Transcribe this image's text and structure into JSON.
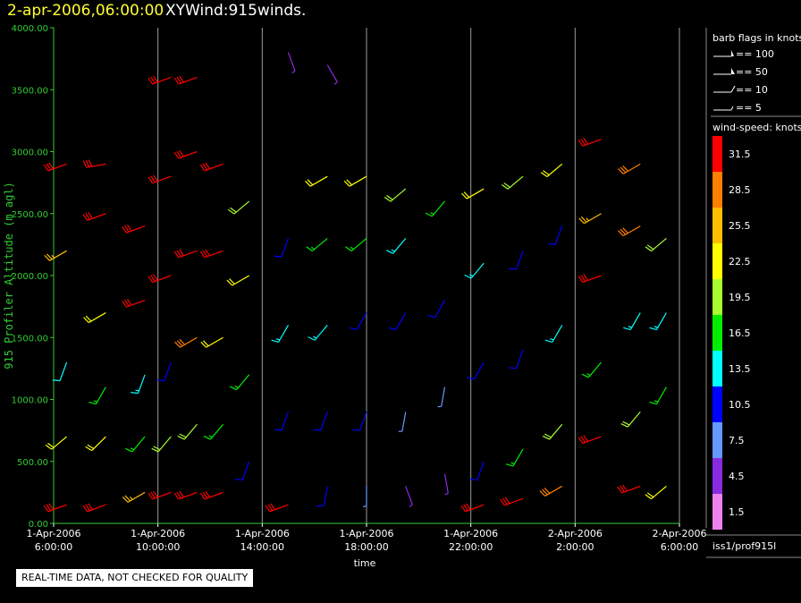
{
  "header": {
    "date": "2-apr-2006,06:00:00",
    "title": "XYWind:915winds."
  },
  "notice": "REAL-TIME DATA, NOT CHECKED FOR QUALITY",
  "legend": {
    "barb_title": "barb flags in knots",
    "barbs": [
      "== 100",
      "== 50",
      "== 10",
      "== 5"
    ],
    "speed_title": "wind-speed: knots",
    "speed_levels": [
      "31.5",
      "28.5",
      "25.5",
      "22.5",
      "19.5",
      "16.5",
      "13.5",
      "10.5",
      "7.5",
      "4.5",
      "1.5"
    ],
    "speed_colors": [
      "#ff0000",
      "#ff7f00",
      "#ffbf00",
      "#ffff00",
      "#a8ff30",
      "#00ee00",
      "#00ffff",
      "#0000ff",
      "#6699ff",
      "#8a2be2",
      "#ee82ee"
    ],
    "source": "iss1/prof915l"
  },
  "chart_data": {
    "type": "scatter",
    "title": "",
    "xlabel": "time",
    "ylabel": "915 Profiler Altitude (m agl)",
    "ylim": [
      0,
      4000
    ],
    "yticks": [
      "0.00",
      "500.00",
      "1000.00",
      "1500.00",
      "2000.00",
      "2500.00",
      "3000.00",
      "3500.00",
      "4000.00"
    ],
    "xlim": [
      "1-Apr-2006 6:00:00",
      "2-Apr-2006 6:00:00"
    ],
    "xticks": [
      {
        "date": "1-Apr-2006",
        "time": "6:00:00"
      },
      {
        "date": "1-Apr-2006",
        "time": "10:00:00"
      },
      {
        "date": "1-Apr-2006",
        "time": "14:00:00"
      },
      {
        "date": "1-Apr-2006",
        "time": "18:00:00"
      },
      {
        "date": "1-Apr-2006",
        "time": "22:00:00"
      },
      {
        "date": "2-Apr-2006",
        "time": "2:00:00"
      },
      {
        "date": "2-Apr-2006",
        "time": "6:00:00"
      }
    ],
    "grid": "vertical",
    "axis_color": "#33cc33",
    "barbs": [
      {
        "time": "1-Apr-2006 06:30",
        "altitude": 150,
        "speed_kt": 30,
        "direction_deg": 250
      },
      {
        "time": "1-Apr-2006 06:30",
        "altitude": 700,
        "speed_kt": 22,
        "direction_deg": 230
      },
      {
        "time": "1-Apr-2006 06:30",
        "altitude": 1300,
        "speed_kt": 12,
        "direction_deg": 200
      },
      {
        "time": "1-Apr-2006 06:30",
        "altitude": 2200,
        "speed_kt": 25,
        "direction_deg": 240
      },
      {
        "time": "1-Apr-2006 06:30",
        "altitude": 2900,
        "speed_kt": 31,
        "direction_deg": 250
      },
      {
        "time": "1-Apr-2006 08:00",
        "altitude": 150,
        "speed_kt": 31,
        "direction_deg": 250
      },
      {
        "time": "1-Apr-2006 08:00",
        "altitude": 700,
        "speed_kt": 22,
        "direction_deg": 225
      },
      {
        "time": "1-Apr-2006 08:00",
        "altitude": 1100,
        "speed_kt": 16,
        "direction_deg": 210
      },
      {
        "time": "1-Apr-2006 08:00",
        "altitude": 1700,
        "speed_kt": 22,
        "direction_deg": 240
      },
      {
        "time": "1-Apr-2006 08:00",
        "altitude": 2500,
        "speed_kt": 31,
        "direction_deg": 250
      },
      {
        "time": "1-Apr-2006 08:00",
        "altitude": 2900,
        "speed_kt": 31,
        "direction_deg": 260
      },
      {
        "time": "1-Apr-2006 09:30",
        "altitude": 250,
        "speed_kt": 25,
        "direction_deg": 240
      },
      {
        "time": "1-Apr-2006 09:30",
        "altitude": 700,
        "speed_kt": 16,
        "direction_deg": 220
      },
      {
        "time": "1-Apr-2006 09:30",
        "altitude": 1200,
        "speed_kt": 13,
        "direction_deg": 200
      },
      {
        "time": "1-Apr-2006 09:30",
        "altitude": 1800,
        "speed_kt": 31,
        "direction_deg": 250
      },
      {
        "time": "1-Apr-2006 09:30",
        "altitude": 2400,
        "speed_kt": 31,
        "direction_deg": 250
      },
      {
        "time": "1-Apr-2006 10:30",
        "altitude": 250,
        "speed_kt": 31,
        "direction_deg": 250
      },
      {
        "time": "1-Apr-2006 10:30",
        "altitude": 700,
        "speed_kt": 19,
        "direction_deg": 220
      },
      {
        "time": "1-Apr-2006 10:30",
        "altitude": 1300,
        "speed_kt": 10,
        "direction_deg": 200
      },
      {
        "time": "1-Apr-2006 10:30",
        "altitude": 2000,
        "speed_kt": 31,
        "direction_deg": 250
      },
      {
        "time": "1-Apr-2006 10:30",
        "altitude": 2800,
        "speed_kt": 31,
        "direction_deg": 250
      },
      {
        "time": "1-Apr-2006 10:30",
        "altitude": 3600,
        "speed_kt": 31,
        "direction_deg": 250
      },
      {
        "time": "1-Apr-2006 11:30",
        "altitude": 250,
        "speed_kt": 31,
        "direction_deg": 250
      },
      {
        "time": "1-Apr-2006 11:30",
        "altitude": 800,
        "speed_kt": 19,
        "direction_deg": 220
      },
      {
        "time": "1-Apr-2006 11:30",
        "altitude": 1500,
        "speed_kt": 28,
        "direction_deg": 240
      },
      {
        "time": "1-Apr-2006 11:30",
        "altitude": 2200,
        "speed_kt": 31,
        "direction_deg": 250
      },
      {
        "time": "1-Apr-2006 11:30",
        "altitude": 3000,
        "speed_kt": 31,
        "direction_deg": 250
      },
      {
        "time": "1-Apr-2006 11:30",
        "altitude": 3600,
        "speed_kt": 31,
        "direction_deg": 250
      },
      {
        "time": "1-Apr-2006 12:30",
        "altitude": 250,
        "speed_kt": 31,
        "direction_deg": 250
      },
      {
        "time": "1-Apr-2006 12:30",
        "altitude": 800,
        "speed_kt": 16,
        "direction_deg": 220
      },
      {
        "time": "1-Apr-2006 12:30",
        "altitude": 1500,
        "speed_kt": 22,
        "direction_deg": 240
      },
      {
        "time": "1-Apr-2006 12:30",
        "altitude": 2200,
        "speed_kt": 31,
        "direction_deg": 250
      },
      {
        "time": "1-Apr-2006 12:30",
        "altitude": 2900,
        "speed_kt": 31,
        "direction_deg": 250
      },
      {
        "time": "1-Apr-2006 13:30",
        "altitude": 500,
        "speed_kt": 10,
        "direction_deg": 200
      },
      {
        "time": "1-Apr-2006 13:30",
        "altitude": 1200,
        "speed_kt": 16,
        "direction_deg": 220
      },
      {
        "time": "1-Apr-2006 13:30",
        "altitude": 2000,
        "speed_kt": 22,
        "direction_deg": 240
      },
      {
        "time": "1-Apr-2006 13:30",
        "altitude": 2600,
        "speed_kt": 19,
        "direction_deg": 230
      },
      {
        "time": "1-Apr-2006 15:00",
        "altitude": 150,
        "speed_kt": 31,
        "direction_deg": 250
      },
      {
        "time": "1-Apr-2006 15:00",
        "altitude": 900,
        "speed_kt": 10,
        "direction_deg": 200
      },
      {
        "time": "1-Apr-2006 15:00",
        "altitude": 1600,
        "speed_kt": 13,
        "direction_deg": 210
      },
      {
        "time": "1-Apr-2006 15:00",
        "altitude": 2300,
        "speed_kt": 10,
        "direction_deg": 200
      },
      {
        "time": "1-Apr-2006 15:00",
        "altitude": 3800,
        "speed_kt": 4,
        "direction_deg": 160
      },
      {
        "time": "1-Apr-2006 16:30",
        "altitude": 300,
        "speed_kt": 10,
        "direction_deg": 190
      },
      {
        "time": "1-Apr-2006 16:30",
        "altitude": 900,
        "speed_kt": 10,
        "direction_deg": 200
      },
      {
        "time": "1-Apr-2006 16:30",
        "altitude": 1600,
        "speed_kt": 13,
        "direction_deg": 220
      },
      {
        "time": "1-Apr-2006 16:30",
        "altitude": 2300,
        "speed_kt": 16,
        "direction_deg": 230
      },
      {
        "time": "1-Apr-2006 16:30",
        "altitude": 2800,
        "speed_kt": 22,
        "direction_deg": 240
      },
      {
        "time": "1-Apr-2006 16:30",
        "altitude": 3700,
        "speed_kt": 4,
        "direction_deg": 150
      },
      {
        "time": "1-Apr-2006 18:00",
        "altitude": 300,
        "speed_kt": 7,
        "direction_deg": 180
      },
      {
        "time": "1-Apr-2006 18:00",
        "altitude": 900,
        "speed_kt": 10,
        "direction_deg": 200
      },
      {
        "time": "1-Apr-2006 18:00",
        "altitude": 1700,
        "speed_kt": 10,
        "direction_deg": 210
      },
      {
        "time": "1-Apr-2006 18:00",
        "altitude": 2300,
        "speed_kt": 16,
        "direction_deg": 230
      },
      {
        "time": "1-Apr-2006 18:00",
        "altitude": 2800,
        "speed_kt": 22,
        "direction_deg": 240
      },
      {
        "time": "1-Apr-2006 19:30",
        "altitude": 300,
        "speed_kt": 4,
        "direction_deg": 160
      },
      {
        "time": "1-Apr-2006 19:30",
        "altitude": 900,
        "speed_kt": 7,
        "direction_deg": 190
      },
      {
        "time": "1-Apr-2006 19:30",
        "altitude": 1700,
        "speed_kt": 10,
        "direction_deg": 210
      },
      {
        "time": "1-Apr-2006 19:30",
        "altitude": 2300,
        "speed_kt": 13,
        "direction_deg": 220
      },
      {
        "time": "1-Apr-2006 19:30",
        "altitude": 2700,
        "speed_kt": 19,
        "direction_deg": 230
      },
      {
        "time": "1-Apr-2006 21:00",
        "altitude": 400,
        "speed_kt": 4,
        "direction_deg": 170
      },
      {
        "time": "1-Apr-2006 21:00",
        "altitude": 1100,
        "speed_kt": 7,
        "direction_deg": 190
      },
      {
        "time": "1-Apr-2006 21:00",
        "altitude": 1800,
        "speed_kt": 10,
        "direction_deg": 210
      },
      {
        "time": "1-Apr-2006 21:00",
        "altitude": 2600,
        "speed_kt": 16,
        "direction_deg": 220
      },
      {
        "time": "1-Apr-2006 22:30",
        "altitude": 150,
        "speed_kt": 31,
        "direction_deg": 250
      },
      {
        "time": "1-Apr-2006 22:30",
        "altitude": 500,
        "speed_kt": 10,
        "direction_deg": 200
      },
      {
        "time": "1-Apr-2006 22:30",
        "altitude": 1300,
        "speed_kt": 10,
        "direction_deg": 210
      },
      {
        "time": "1-Apr-2006 22:30",
        "altitude": 2100,
        "speed_kt": 13,
        "direction_deg": 220
      },
      {
        "time": "1-Apr-2006 22:30",
        "altitude": 2700,
        "speed_kt": 22,
        "direction_deg": 240
      },
      {
        "time": "2-Apr-2006 00:00",
        "altitude": 200,
        "speed_kt": 31,
        "direction_deg": 250
      },
      {
        "time": "2-Apr-2006 00:00",
        "altitude": 600,
        "speed_kt": 16,
        "direction_deg": 210
      },
      {
        "time": "2-Apr-2006 00:00",
        "altitude": 1400,
        "speed_kt": 10,
        "direction_deg": 200
      },
      {
        "time": "2-Apr-2006 00:00",
        "altitude": 2200,
        "speed_kt": 10,
        "direction_deg": 200
      },
      {
        "time": "2-Apr-2006 00:00",
        "altitude": 2800,
        "speed_kt": 19,
        "direction_deg": 230
      },
      {
        "time": "2-Apr-2006 01:30",
        "altitude": 300,
        "speed_kt": 28,
        "direction_deg": 240
      },
      {
        "time": "2-Apr-2006 01:30",
        "altitude": 800,
        "speed_kt": 19,
        "direction_deg": 220
      },
      {
        "time": "2-Apr-2006 01:30",
        "altitude": 1600,
        "speed_kt": 13,
        "direction_deg": 210
      },
      {
        "time": "2-Apr-2006 01:30",
        "altitude": 2400,
        "speed_kt": 10,
        "direction_deg": 200
      },
      {
        "time": "2-Apr-2006 01:30",
        "altitude": 2900,
        "speed_kt": 22,
        "direction_deg": 230
      },
      {
        "time": "2-Apr-2006 03:00",
        "altitude": 700,
        "speed_kt": 31,
        "direction_deg": 250
      },
      {
        "time": "2-Apr-2006 03:00",
        "altitude": 1300,
        "speed_kt": 16,
        "direction_deg": 220
      },
      {
        "time": "2-Apr-2006 03:00",
        "altitude": 2000,
        "speed_kt": 31,
        "direction_deg": 250
      },
      {
        "time": "2-Apr-2006 03:00",
        "altitude": 2500,
        "speed_kt": 25,
        "direction_deg": 240
      },
      {
        "time": "2-Apr-2006 03:00",
        "altitude": 3100,
        "speed_kt": 31,
        "direction_deg": 250
      },
      {
        "time": "2-Apr-2006 04:30",
        "altitude": 300,
        "speed_kt": 31,
        "direction_deg": 250
      },
      {
        "time": "2-Apr-2006 04:30",
        "altitude": 900,
        "speed_kt": 19,
        "direction_deg": 220
      },
      {
        "time": "2-Apr-2006 04:30",
        "altitude": 1700,
        "speed_kt": 13,
        "direction_deg": 210
      },
      {
        "time": "2-Apr-2006 04:30",
        "altitude": 2400,
        "speed_kt": 28,
        "direction_deg": 240
      },
      {
        "time": "2-Apr-2006 04:30",
        "altitude": 2900,
        "speed_kt": 28,
        "direction_deg": 240
      },
      {
        "time": "2-Apr-2006 05:30",
        "altitude": 300,
        "speed_kt": 22,
        "direction_deg": 230
      },
      {
        "time": "2-Apr-2006 05:30",
        "altitude": 1100,
        "speed_kt": 16,
        "direction_deg": 210
      },
      {
        "time": "2-Apr-2006 05:30",
        "altitude": 1700,
        "speed_kt": 13,
        "direction_deg": 210
      },
      {
        "time": "2-Apr-2006 05:30",
        "altitude": 2300,
        "speed_kt": 19,
        "direction_deg": 230
      }
    ]
  }
}
